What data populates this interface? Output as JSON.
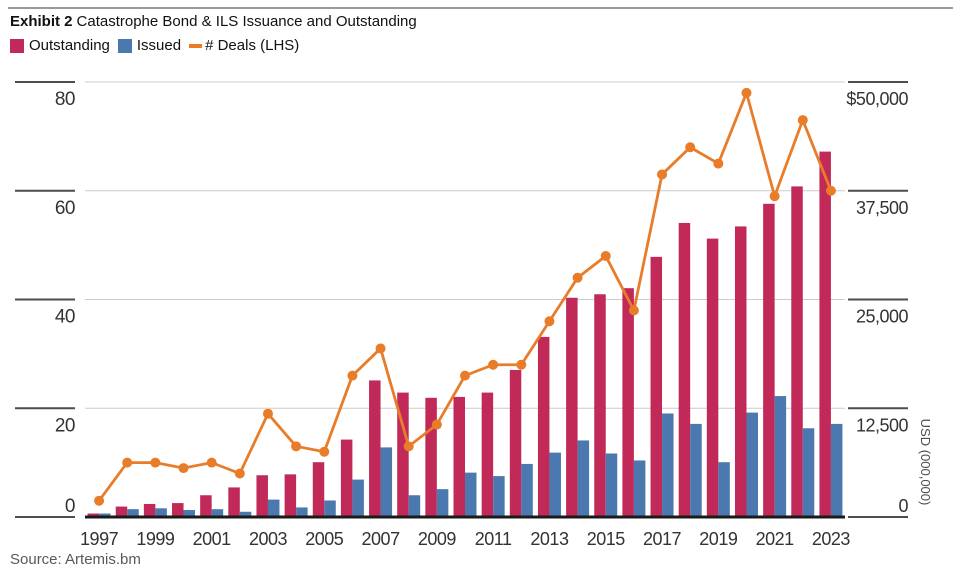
{
  "title": {
    "prefix": "Exhibit 2",
    "main": "Catastrophe Bond & ILS Issuance and Outstanding"
  },
  "legend": {
    "outstanding": {
      "label": "Outstanding",
      "color": "#C12A58"
    },
    "issued": {
      "label": "Issued",
      "color": "#4C78B0"
    },
    "deals": {
      "label": "# Deals (LHS)",
      "color": "#E87C28"
    }
  },
  "source": "Source: Artemis.bm",
  "colors": {
    "grid": "#CCCCCC",
    "tick": "#4D4D4D",
    "axis_line": "#1A1A1A",
    "label": "#333333",
    "axis_title": "#4D4D4D",
    "top_rule": "#9A9A9A"
  },
  "chart_data": {
    "type": "bar",
    "combo": "grouped bars with line overlay",
    "title": "Catastrophe Bond & ILS Issuance and Outstanding",
    "categories": [
      1997,
      1998,
      1999,
      2000,
      2001,
      2002,
      2003,
      2004,
      2005,
      2006,
      2007,
      2008,
      2009,
      2010,
      2011,
      2012,
      2013,
      2014,
      2015,
      2016,
      2017,
      2018,
      2019,
      2020,
      2021,
      2022,
      2023
    ],
    "x_tick_labels": [
      "1997",
      "1999",
      "2001",
      "2003",
      "2005",
      "2007",
      "2009",
      "2011",
      "2013",
      "2015",
      "2017",
      "2019",
      "2021",
      "2023"
    ],
    "series": [
      {
        "name": "Outstanding",
        "type": "bar",
        "axis": "right",
        "color": "#C12A58",
        "values": [
          400,
          1200,
          1500,
          1600,
          2500,
          3400,
          4800,
          4900,
          6300,
          8900,
          15700,
          14300,
          13700,
          13800,
          14300,
          16900,
          20700,
          25200,
          25600,
          26300,
          29900,
          33800,
          32000,
          33400,
          36000,
          38000,
          42000
        ]
      },
      {
        "name": "Issued",
        "type": "bar",
        "axis": "right",
        "color": "#4C78B0",
        "values": [
          400,
          900,
          1000,
          800,
          900,
          600,
          2000,
          1100,
          1900,
          4300,
          8000,
          2500,
          3200,
          5100,
          4700,
          6100,
          7400,
          8800,
          7300,
          6500,
          11900,
          10700,
          6300,
          12000,
          13900,
          10200,
          10700
        ]
      },
      {
        "name": "# Deals (LHS)",
        "type": "line",
        "axis": "left",
        "color": "#E87C28",
        "values": [
          3,
          10,
          10,
          9,
          10,
          8,
          19,
          13,
          12,
          26,
          31,
          13,
          17,
          26,
          28,
          28,
          36,
          44,
          48,
          38,
          63,
          68,
          65,
          78,
          59,
          73,
          60
        ]
      }
    ],
    "left_axis": {
      "min": 0,
      "max": 80,
      "ticks": [
        0,
        20,
        40,
        60,
        80
      ],
      "tick_labels": [
        "0",
        "20",
        "40",
        "60",
        "80"
      ]
    },
    "right_axis": {
      "min": 0,
      "max": 50000,
      "ticks": [
        0,
        12500,
        25000,
        37500,
        50000
      ],
      "tick_labels": [
        "0",
        "12,500",
        "25,000",
        "37,500",
        "$50,000"
      ],
      "title": "USD (000,000)"
    },
    "grid": true,
    "legend_position": "top-left"
  }
}
